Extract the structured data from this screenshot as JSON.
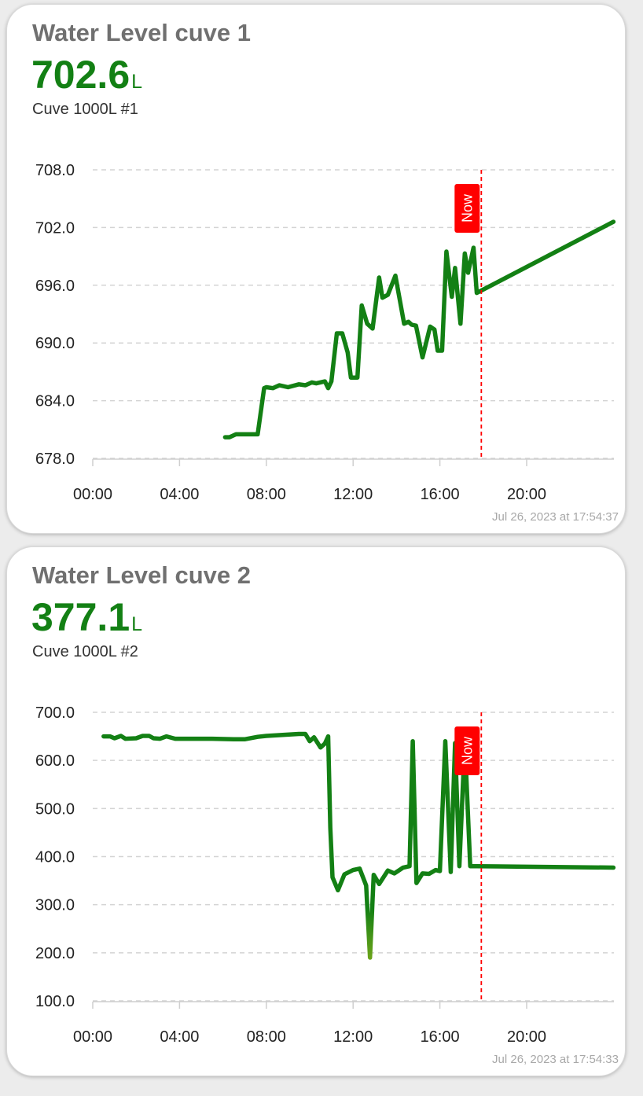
{
  "cards": [
    {
      "title": "Water Level cuve 1",
      "value": "702.6",
      "unit": "L",
      "subtitle": "Cuve 1000L #1",
      "timestamp": "Jul 26, 2023 at 17:54:37",
      "now_label": "Now",
      "colors": {
        "line": "#138014",
        "now": "#ff0000",
        "grid": "#d4d4d4"
      },
      "chart_data": {
        "type": "line",
        "x_unit": "hours",
        "x": [
          6.1,
          6.3,
          6.6,
          7.6,
          7.9,
          8.0,
          8.3,
          8.6,
          9.0,
          9.5,
          9.8,
          10.1,
          10.3,
          10.7,
          10.85,
          11.0,
          11.25,
          11.5,
          11.75,
          11.9,
          12.2,
          12.4,
          12.65,
          12.9,
          13.2,
          13.35,
          13.6,
          13.95,
          14.35,
          14.55,
          14.7,
          14.9,
          15.2,
          15.55,
          15.75,
          15.9,
          16.1,
          16.3,
          16.55,
          16.7,
          16.95,
          17.15,
          17.3,
          17.55,
          17.7,
          24.0
        ],
        "y": [
          680.2,
          680.2,
          680.5,
          680.5,
          685.3,
          685.4,
          685.3,
          685.6,
          685.4,
          685.7,
          685.6,
          685.9,
          685.8,
          686.0,
          685.3,
          686.0,
          691.0,
          691.0,
          689.0,
          686.4,
          686.4,
          693.9,
          692.0,
          691.5,
          696.8,
          694.7,
          695.0,
          697.0,
          692.0,
          692.2,
          691.9,
          691.8,
          688.5,
          691.7,
          691.4,
          689.2,
          689.2,
          699.5,
          694.8,
          697.8,
          692.0,
          699.3,
          697.3,
          699.9,
          695.2,
          702.6
        ],
        "now": 17.91,
        "ylim": [
          678,
          708
        ],
        "yticks": [
          "678.0",
          "684.0",
          "690.0",
          "696.0",
          "702.0",
          "708.0"
        ],
        "ytick_values": [
          678,
          684,
          690,
          696,
          702,
          708
        ],
        "xticks": [
          "00:00",
          "04:00",
          "08:00",
          "12:00",
          "16:00",
          "20:00"
        ],
        "xtick_values": [
          0,
          4,
          8,
          12,
          16,
          20
        ],
        "xlim": [
          0,
          24
        ],
        "grid": true,
        "legend": "none"
      }
    },
    {
      "title": "Water Level cuve 2",
      "value": "377.1",
      "unit": "L",
      "subtitle": "Cuve 1000L #2",
      "timestamp": "Jul 26, 2023 at 17:54:33",
      "now_label": "Now",
      "colors": {
        "line": "#138014",
        "low": "#6aa31a",
        "now": "#ff0000",
        "grid": "#d4d4d4"
      },
      "chart_data": {
        "type": "line",
        "x_unit": "hours",
        "x": [
          0.5,
          0.8,
          1.0,
          1.3,
          1.5,
          2.0,
          2.3,
          2.6,
          2.8,
          3.1,
          3.4,
          3.8,
          4.2,
          5.5,
          6.5,
          7.0,
          7.6,
          8.0,
          9.5,
          9.8,
          10.0,
          10.2,
          10.5,
          10.7,
          10.85,
          10.95,
          11.05,
          11.3,
          11.6,
          12.0,
          12.3,
          12.6,
          12.78,
          12.95,
          13.2,
          13.6,
          13.9,
          14.3,
          14.6,
          14.75,
          14.92,
          15.2,
          15.5,
          15.8,
          16.0,
          16.25,
          16.5,
          16.7,
          16.9,
          17.15,
          17.4,
          17.7,
          24.0
        ],
        "y": [
          650,
          650,
          646,
          651,
          645,
          646,
          651,
          651,
          646,
          645,
          650,
          645,
          645,
          645,
          644,
          644,
          649,
          651,
          655,
          655,
          640,
          648,
          627,
          635,
          650,
          460,
          357,
          330,
          363,
          372,
          375,
          340,
          190,
          362,
          343,
          371,
          365,
          377,
          380,
          640,
          345,
          365,
          364,
          372,
          370,
          640,
          368,
          636,
          380,
          640,
          380,
          380,
          377.1
        ],
        "now": 17.91,
        "ylim": [
          100,
          700
        ],
        "yticks": [
          "100.0",
          "200.0",
          "300.0",
          "400.0",
          "500.0",
          "600.0",
          "700.0"
        ],
        "ytick_values": [
          100,
          200,
          300,
          400,
          500,
          600,
          700
        ],
        "xticks": [
          "00:00",
          "04:00",
          "08:00",
          "12:00",
          "16:00",
          "20:00"
        ],
        "xtick_values": [
          0,
          4,
          8,
          12,
          16,
          20
        ],
        "xlim": [
          0,
          24
        ],
        "grid": true,
        "legend": "none"
      }
    }
  ]
}
